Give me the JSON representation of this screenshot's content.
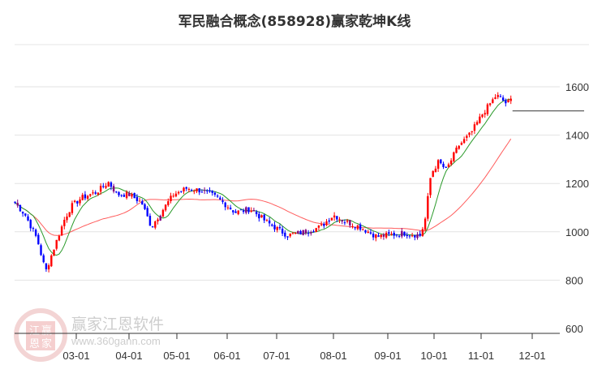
{
  "chart_data": {
    "type": "candlestick",
    "title": "军民融合概念(858928)赢家乾坤K线",
    "ylim": [
      600,
      1650
    ],
    "yticks": [
      1600,
      1400,
      1200,
      1000,
      800,
      600
    ],
    "xticks": [
      "03-01",
      "04-01",
      "05-01",
      "06-01",
      "07-01",
      "08-01",
      "09-01",
      "10-01",
      "11-01",
      "12-01"
    ],
    "grid": true,
    "close_path": [
      [
        "01-24",
        1120
      ],
      [
        "01-30",
        1070
      ],
      [
        "02-06",
        970
      ],
      [
        "02-11",
        835
      ],
      [
        "02-16",
        935
      ],
      [
        "02-22",
        1050
      ],
      [
        "02-26",
        1105
      ],
      [
        "03-04",
        1140
      ],
      [
        "03-13",
        1165
      ],
      [
        "03-20",
        1205
      ],
      [
        "03-25",
        1155
      ],
      [
        "04-01",
        1155
      ],
      [
        "04-09",
        1120
      ],
      [
        "04-15",
        1020
      ],
      [
        "04-22",
        1090
      ],
      [
        "04-29",
        1155
      ],
      [
        "05-07",
        1180
      ],
      [
        "05-17",
        1170
      ],
      [
        "05-26",
        1140
      ],
      [
        "06-06",
        1080
      ],
      [
        "06-15",
        1095
      ],
      [
        "06-25",
        1040
      ],
      [
        "07-07",
        985
      ],
      [
        "07-16",
        1000
      ],
      [
        "07-25",
        1020
      ],
      [
        "08-01",
        1070
      ],
      [
        "08-07",
        1045
      ],
      [
        "08-16",
        1020
      ],
      [
        "08-26",
        980
      ],
      [
        "09-11",
        995
      ],
      [
        "09-22",
        985
      ],
      [
        "09-25",
        1040
      ],
      [
        "09-29",
        1240
      ],
      [
        "10-04",
        1290
      ],
      [
        "10-09",
        1255
      ],
      [
        "10-17",
        1355
      ],
      [
        "10-25",
        1405
      ],
      [
        "11-02",
        1490
      ],
      [
        "11-10",
        1565
      ],
      [
        "11-16",
        1530
      ],
      [
        "11-20",
        1555
      ]
    ],
    "last_close_line": 1500,
    "series": [
      {
        "name": "MA-short",
        "color": "#2a9a2a"
      },
      {
        "name": "MA-long",
        "color": "#ff4040"
      }
    ],
    "colors": {
      "up": "#ff0000",
      "down": "#0000ff",
      "cross": "#800080"
    }
  },
  "watermark": {
    "brand": "赢家江恩软件",
    "url": "www.360gann.com",
    "logo_chars": [
      "江",
      "赢",
      "恩",
      "家"
    ]
  }
}
